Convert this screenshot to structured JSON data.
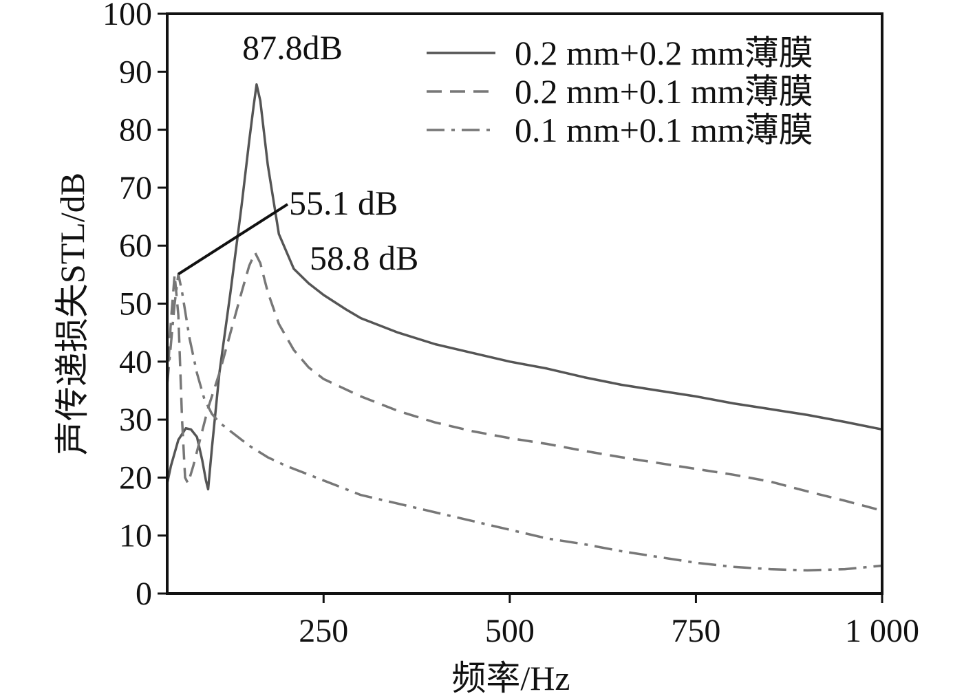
{
  "chart_data": {
    "type": "line",
    "xlabel": "频率/Hz",
    "ylabel": "声传递损失STL/dB",
    "xlim": [
      40,
      1000
    ],
    "ylim": [
      0,
      100
    ],
    "xticks": [
      250,
      500,
      750,
      1000
    ],
    "xtick_labels": [
      "250",
      "500",
      "750",
      "1 000"
    ],
    "yticks": [
      0,
      10,
      20,
      30,
      40,
      50,
      60,
      70,
      80,
      90,
      100
    ],
    "ytick_labels": [
      "0",
      "10",
      "20",
      "30",
      "40",
      "50",
      "60",
      "70",
      "80",
      "90",
      "100"
    ],
    "grid": false,
    "legend_position": "top-right",
    "series": [
      {
        "name": "0.2 mm+0.2 mm薄膜",
        "style": "solid",
        "color": "#555555",
        "x": [
          40,
          45,
          55,
          65,
          72,
          80,
          87,
          92,
          95,
          100,
          110,
          125,
          140,
          150,
          156,
          160,
          165,
          175,
          190,
          210,
          230,
          250,
          280,
          300,
          350,
          400,
          450,
          500,
          550,
          600,
          650,
          700,
          750,
          800,
          850,
          900,
          950,
          1000
        ],
        "y": [
          19,
          22,
          26.5,
          28.5,
          28.3,
          27,
          23,
          19.5,
          18,
          25,
          38,
          52,
          67,
          78,
          84,
          87.8,
          85,
          74,
          62,
          56,
          53.5,
          51.5,
          49,
          47.5,
          45,
          43,
          41.5,
          40,
          38.8,
          37.3,
          36,
          35,
          34,
          32.8,
          31.8,
          30.8,
          29.6,
          28.3
        ]
      },
      {
        "name": "0.2 mm+0.1 mm薄膜",
        "style": "dashed",
        "color": "#777777",
        "x": [
          40,
          45,
          50,
          55,
          60,
          64,
          68,
          75,
          85,
          95,
          110,
          125,
          140,
          150,
          158,
          165,
          175,
          190,
          210,
          230,
          250,
          300,
          350,
          400,
          450,
          500,
          550,
          600,
          650,
          700,
          750,
          800,
          850,
          900,
          950,
          1000
        ],
        "y": [
          36,
          47,
          55,
          48,
          30,
          20,
          19,
          22,
          27,
          32,
          38,
          45,
          52,
          56.5,
          58.8,
          57,
          52,
          46.5,
          42,
          39,
          37,
          34,
          31.5,
          29.5,
          28,
          26.8,
          25.8,
          24.6,
          23.5,
          22.5,
          21.5,
          20.5,
          19.3,
          17.6,
          16,
          14.3
        ]
      },
      {
        "name": "0.1 mm+0.1 mm薄膜",
        "style": "dashdot",
        "color": "#777777",
        "x": [
          40,
          45,
          50,
          55,
          60,
          70,
          80,
          90,
          100,
          110,
          125,
          150,
          175,
          200,
          250,
          300,
          350,
          400,
          450,
          500,
          550,
          600,
          650,
          700,
          750,
          800,
          850,
          900,
          950,
          1000
        ],
        "y": [
          36,
          43,
          50,
          55.1,
          52,
          44,
          38,
          33.5,
          31,
          29.5,
          28,
          25.5,
          23.5,
          22,
          19.5,
          17,
          15.5,
          14,
          12.5,
          11,
          9.5,
          8.5,
          7.3,
          6.3,
          5.3,
          4.6,
          4.2,
          4,
          4.2,
          4.8
        ]
      }
    ],
    "annotations": [
      {
        "text": "87.8dB",
        "x": 160,
        "y": 87.8
      },
      {
        "text": "55.1 dB",
        "x": 55,
        "y": 55.1
      },
      {
        "text": "58.8 dB",
        "x": 158,
        "y": 58.8
      }
    ]
  }
}
